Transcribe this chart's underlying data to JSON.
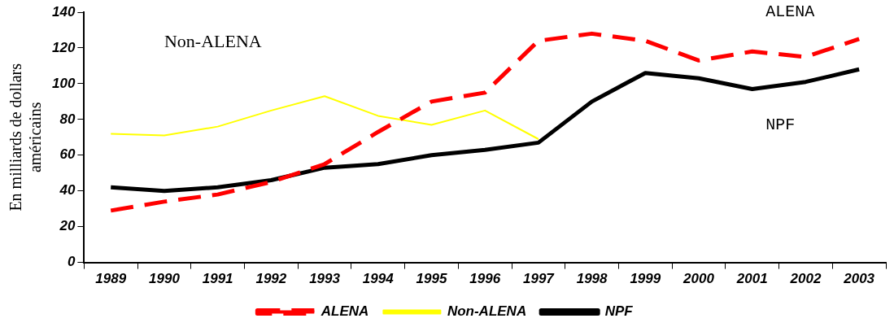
{
  "chart_data": {
    "type": "line",
    "ylabel": "En milliards de dollars\naméricains",
    "categories": [
      "1989",
      "1990",
      "1991",
      "1992",
      "1993",
      "1994",
      "1995",
      "1996",
      "1997",
      "1998",
      "1999",
      "2000",
      "2001",
      "2002",
      "2003"
    ],
    "series": [
      {
        "name": "ALENA",
        "color": "#ff0000",
        "line_style": "dashed",
        "values": [
          29,
          34,
          38,
          45,
          55,
          73,
          90,
          95,
          124,
          128,
          124,
          113,
          118,
          115,
          125
        ]
      },
      {
        "name": "Non-ALENA",
        "color": "#ffff00",
        "values": [
          72,
          71,
          76,
          85,
          93,
          82,
          77,
          85,
          69,
          null,
          null,
          null,
          null,
          null,
          null
        ]
      },
      {
        "name": "NPF",
        "color": "#000000",
        "values": [
          42,
          40,
          42,
          46,
          53,
          55,
          60,
          63,
          67,
          90,
          106,
          103,
          97,
          101,
          108
        ]
      }
    ],
    "ylim": [
      0,
      140
    ],
    "yticks": [
      0,
      20,
      40,
      60,
      80,
      100,
      120,
      140
    ],
    "grid": false,
    "legend": "bottom",
    "marker": "none",
    "line_style": "solid",
    "annotations": [
      "ALENA",
      "Non-ALENA",
      "NPF"
    ]
  }
}
